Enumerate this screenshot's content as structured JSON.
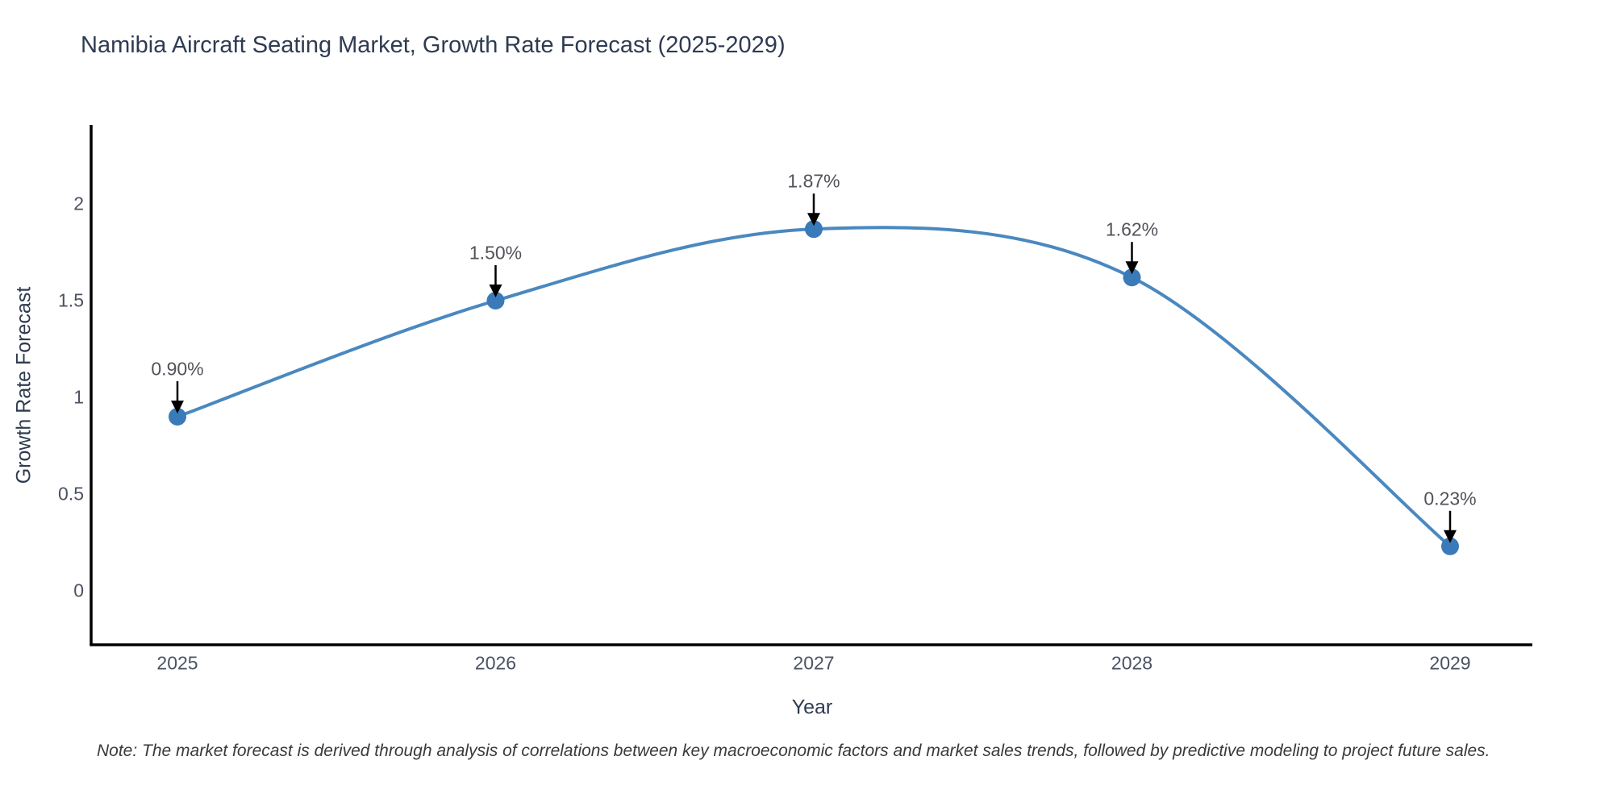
{
  "title": "Namibia Aircraft Seating Market, Growth Rate Forecast (2025-2029)",
  "note": "Note: The market forecast is derived through analysis of correlations between key macroeconomic factors and market sales trends, followed by predictive modeling to project future sales.",
  "colors": {
    "line": "#4a88c0",
    "marker": "#3b7ab8",
    "axis": "#000000",
    "arrow": "#000000",
    "tick_label": "#4b5263",
    "title_text": "#2e3b52"
  },
  "chart_data": {
    "type": "line",
    "title": "Namibia Aircraft Seating Market, Growth Rate Forecast (2025-2029)",
    "xlabel": "Year",
    "ylabel": "Growth Rate Forecast",
    "x": [
      2025,
      2026,
      2027,
      2028,
      2029
    ],
    "series": [
      {
        "name": "Growth Rate Forecast",
        "values": [
          0.9,
          1.5,
          1.87,
          1.62,
          0.23
        ],
        "point_labels": [
          "0.90%",
          "1.50%",
          "1.87%",
          "1.62%",
          "0.23%"
        ]
      }
    ],
    "xticks": [
      "2025",
      "2026",
      "2027",
      "2028",
      "2029"
    ],
    "yticks": [
      0,
      0.5,
      1,
      1.5,
      2
    ],
    "ytick_labels": [
      "0",
      "0.5",
      "1",
      "1.5",
      "2"
    ],
    "ylim": [
      -0.28,
      2.41
    ],
    "grid": false,
    "legend_position": "none",
    "line_shape": "spline",
    "annotations_style": "value labels above points with downward black arrows"
  }
}
